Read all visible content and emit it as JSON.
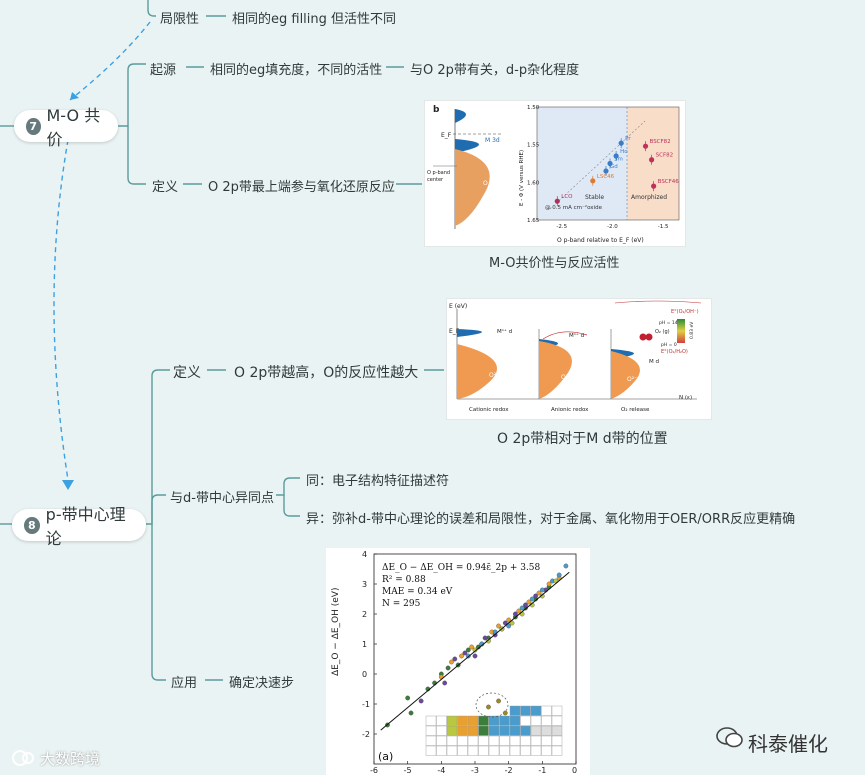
{
  "colors": {
    "branch": "#5a9c9c",
    "dashed_link": "#3da0e0",
    "background": "#eaf3f3",
    "node_badge": "#66797c"
  },
  "nodes": {
    "mo_covalency": {
      "number": "7",
      "label": "M-O 共价"
    },
    "p_band_center": {
      "number": "8",
      "label": "p-带中心理论"
    }
  },
  "top": {
    "limit_label": "局限性",
    "limit_detail": "相同的eg filling 但活性不同"
  },
  "mo_branch": {
    "origin_label": "起源",
    "origin_detail": "相同的eg填充度，不同的活性",
    "origin_detail2": "与O 2p带有关，d-p杂化程度",
    "definition_label": "定义",
    "definition_detail": "O 2p带最上端参与氧化还原反应",
    "figure_caption": "M-O共价性与反应活性",
    "figure": {
      "panel": "b",
      "left_labels": {
        "ef": "E_F",
        "m3d": "M 3d",
        "o2p": "O 2p",
        "center": [
          "O p-band",
          "center"
        ]
      },
      "y_axis": "E - Φ (V versus RHE)",
      "x_axis": "O p-band relative to E_F (eV)",
      "points": [
        {
          "name": "LCO",
          "x": -2.55,
          "y": 1.625,
          "color": "#b0305a"
        },
        {
          "name": "LSC46",
          "x": -2.2,
          "y": 1.598,
          "color": "#e07a30"
        },
        {
          "name": "Gd",
          "x": -2.07,
          "y": 1.585,
          "color": "#3a7cc7"
        },
        {
          "name": "Sm",
          "x": -2.03,
          "y": 1.575,
          "color": "#3a7cc7"
        },
        {
          "name": "Ho",
          "x": -1.97,
          "y": 1.565,
          "color": "#3a7cc7"
        },
        {
          "name": "Pr",
          "x": -1.92,
          "y": 1.548,
          "color": "#3a7cc7"
        },
        {
          "name": "BSCF82",
          "x": -1.68,
          "y": 1.552,
          "color": "#c0305a"
        },
        {
          "name": "SCF82",
          "x": -1.62,
          "y": 1.57,
          "color": "#c0305a"
        },
        {
          "name": "BSCF46",
          "x": -1.6,
          "y": 1.605,
          "color": "#c0305a"
        }
      ],
      "xlim": [
        -2.75,
        -1.35
      ],
      "ylim": [
        1.5,
        1.65
      ],
      "x_ticks": [
        "-2.5",
        "-2.0",
        "-1.5"
      ],
      "y_ticks": [
        "1.50",
        "1.55",
        "1.60",
        "1.65"
      ],
      "region_labels": [
        "Stable",
        "Amorphized"
      ],
      "annotation": "@ 0.5 mA cm⁻²oxide"
    }
  },
  "p_branch": {
    "definition_label": "定义",
    "definition_detail": "O 2p带越高，O的反应性越大",
    "figure_caption": "O 2p带相对于M d带的位置",
    "figure2": {
      "y_label": "E (eV)",
      "ef": "E_F",
      "panels": [
        "Cationic redox",
        "Anionic redox",
        "O₂ release"
      ],
      "labels": {
        "m_d": "Mⁿ⁺ d",
        "o2p": "O²⁻ p",
        "m_d3": "M d",
        "o_gas": "O₂ (g)"
      },
      "axis_label": "N (ε)",
      "legend": [
        "E°(O₂/OH⁻)",
        "pH = 14",
        "pH = 0",
        "E°(O₂/H₂O)",
        "0.83 eV"
      ]
    },
    "similarity_label": "与d-带中心异同点",
    "same": "同：电子结构特征描述符",
    "different": "异：弥补d-带中心理论的误差和局限性，对于金属、氧化物用于OER/ORR反应更精确",
    "application_label": "应用",
    "application_detail": "确定决速步"
  },
  "chart_data": {
    "type": "scatter",
    "panel_label": "(a)",
    "xlim": [
      -6,
      0
    ],
    "ylim": [
      -3,
      4
    ],
    "x_ticks": [
      "-6",
      "-5",
      "-4",
      "-3",
      "-2",
      "-1",
      "0"
    ],
    "y_ticks": [
      "-2",
      "-1",
      "0",
      "1",
      "2",
      "3",
      "4"
    ],
    "ylabel": "ΔE_O − ΔE_OH (eV)",
    "fit_line": {
      "slope": 0.94,
      "intercept": 3.58
    },
    "annotations": [
      "ΔE_O − ΔE_OH = 0.94ε̄_2p + 3.58",
      "R² = 0.88",
      "MAE = 0.34 eV",
      "N = 295"
    ],
    "series": [
      {
        "color": "#3c7d3c",
        "x": [
          -5.6,
          -5.0,
          -4.9,
          -4.4,
          -4.2,
          -4.0,
          -3.8,
          -3.5,
          -3.2,
          -2.9,
          -2.6,
          -2.2,
          -1.8,
          -1.5,
          -1.2,
          -0.8
        ],
        "y": [
          -1.7,
          -0.8,
          -1.3,
          -0.5,
          -0.3,
          0.0,
          0.2,
          0.3,
          0.8,
          0.9,
          1.2,
          1.5,
          1.9,
          2.2,
          2.5,
          2.9
        ]
      },
      {
        "color": "#e8a030",
        "x": [
          -4.0,
          -3.7,
          -3.4,
          -3.1,
          -2.8,
          -2.5,
          -2.3,
          -2.0,
          -1.7,
          -1.4,
          -1.1,
          -0.8,
          -0.5
        ],
        "y": [
          -0.1,
          0.4,
          0.6,
          0.9,
          1.0,
          1.4,
          1.6,
          1.8,
          2.1,
          2.4,
          2.7,
          3.0,
          3.2
        ]
      },
      {
        "color": "#6a4a9c",
        "x": [
          -4.6,
          -3.9,
          -3.6,
          -3.3,
          -3.0,
          -2.7,
          -2.4,
          -2.1,
          -1.8,
          -1.5,
          -1.2,
          -0.9
        ],
        "y": [
          -0.9,
          -0.3,
          0.5,
          0.7,
          0.6,
          1.2,
          1.3,
          1.7,
          2.0,
          2.3,
          2.6,
          2.8
        ]
      },
      {
        "color": "#4a9ccc",
        "x": [
          -3.2,
          -2.8,
          -2.4,
          -2.0,
          -1.6,
          -1.3,
          -1.0,
          -0.7,
          -0.5,
          -0.3
        ],
        "y": [
          0.6,
          1.0,
          1.4,
          1.6,
          2.2,
          2.5,
          2.8,
          3.1,
          3.3,
          3.6
        ]
      },
      {
        "color": "#b8c840",
        "x": [
          -3.0,
          -2.6,
          -2.2,
          -1.9,
          -1.6,
          -1.3,
          -1.0,
          -0.6
        ],
        "y": [
          0.8,
          1.1,
          1.5,
          1.7,
          2.0,
          2.3,
          2.6,
          3.1
        ]
      },
      {
        "color": "#9c8a2a",
        "x": [
          -2.6,
          -2.3,
          -2.1
        ],
        "y": [
          -1.1,
          -0.9,
          -1.3
        ]
      }
    ]
  },
  "watermarks": {
    "left": "大数跨境",
    "right": "科泰催化"
  }
}
